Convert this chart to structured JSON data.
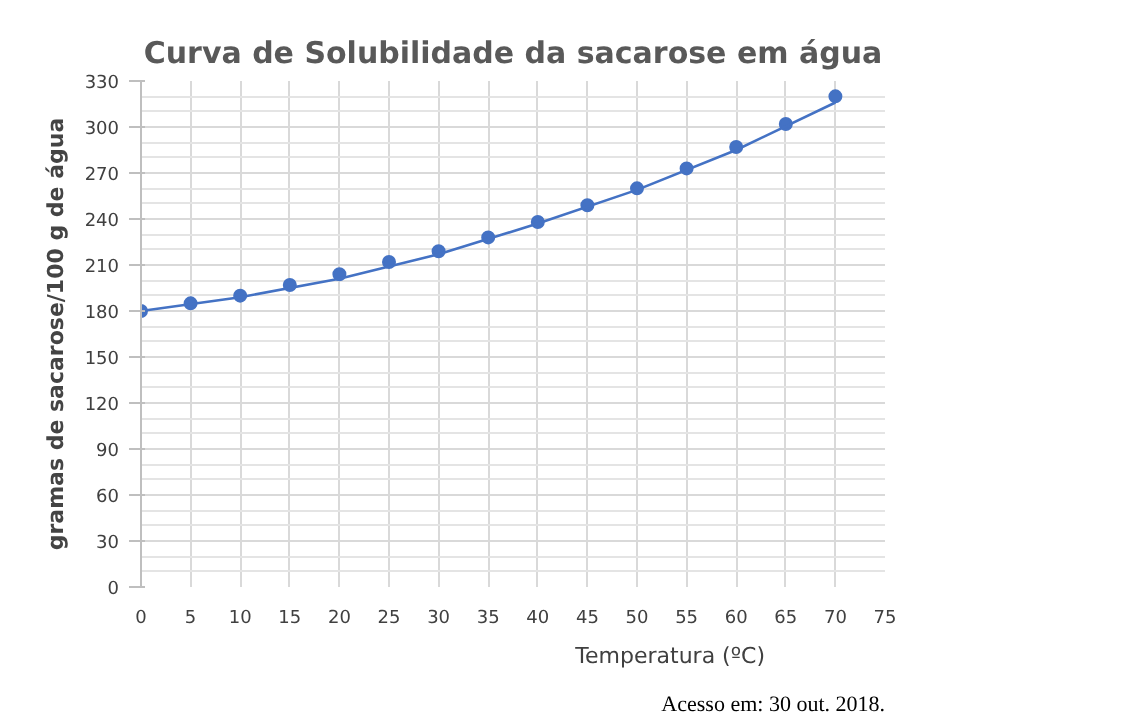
{
  "chart_data": {
    "type": "scatter",
    "title": "Curva de Solubilidade da sacarose em água",
    "xlabel": "Temperatura (ºC)",
    "ylabel": "gramas de sacarose/100 g de água",
    "x": [
      0,
      5,
      10,
      15,
      20,
      25,
      30,
      35,
      40,
      45,
      50,
      55,
      60,
      65,
      70
    ],
    "series": [
      {
        "color": "#4472c4",
        "values": [
          180,
          185,
          190,
          197,
          204,
          212,
          219,
          228,
          238,
          249,
          260,
          273,
          287,
          302,
          320
        ],
        "marker": "circle"
      },
      {
        "type": "line",
        "color": "#4472c4",
        "x": [
          0,
          10,
          20,
          30,
          40,
          50,
          60,
          70
        ],
        "values": [
          180,
          189,
          201,
          217,
          237,
          259,
          285,
          316
        ],
        "marker": "none"
      }
    ],
    "xlim": [
      0,
      75
    ],
    "xticks": [
      0,
      5,
      10,
      15,
      20,
      25,
      30,
      35,
      40,
      45,
      50,
      55,
      60,
      65,
      70,
      75
    ],
    "ylim": [
      0,
      330
    ],
    "yticks": [
      0,
      30,
      60,
      90,
      120,
      150,
      180,
      210,
      240,
      270,
      300,
      330
    ],
    "grid": true,
    "annotations": [
      "Acesso em: 30 out. 2018."
    ]
  }
}
